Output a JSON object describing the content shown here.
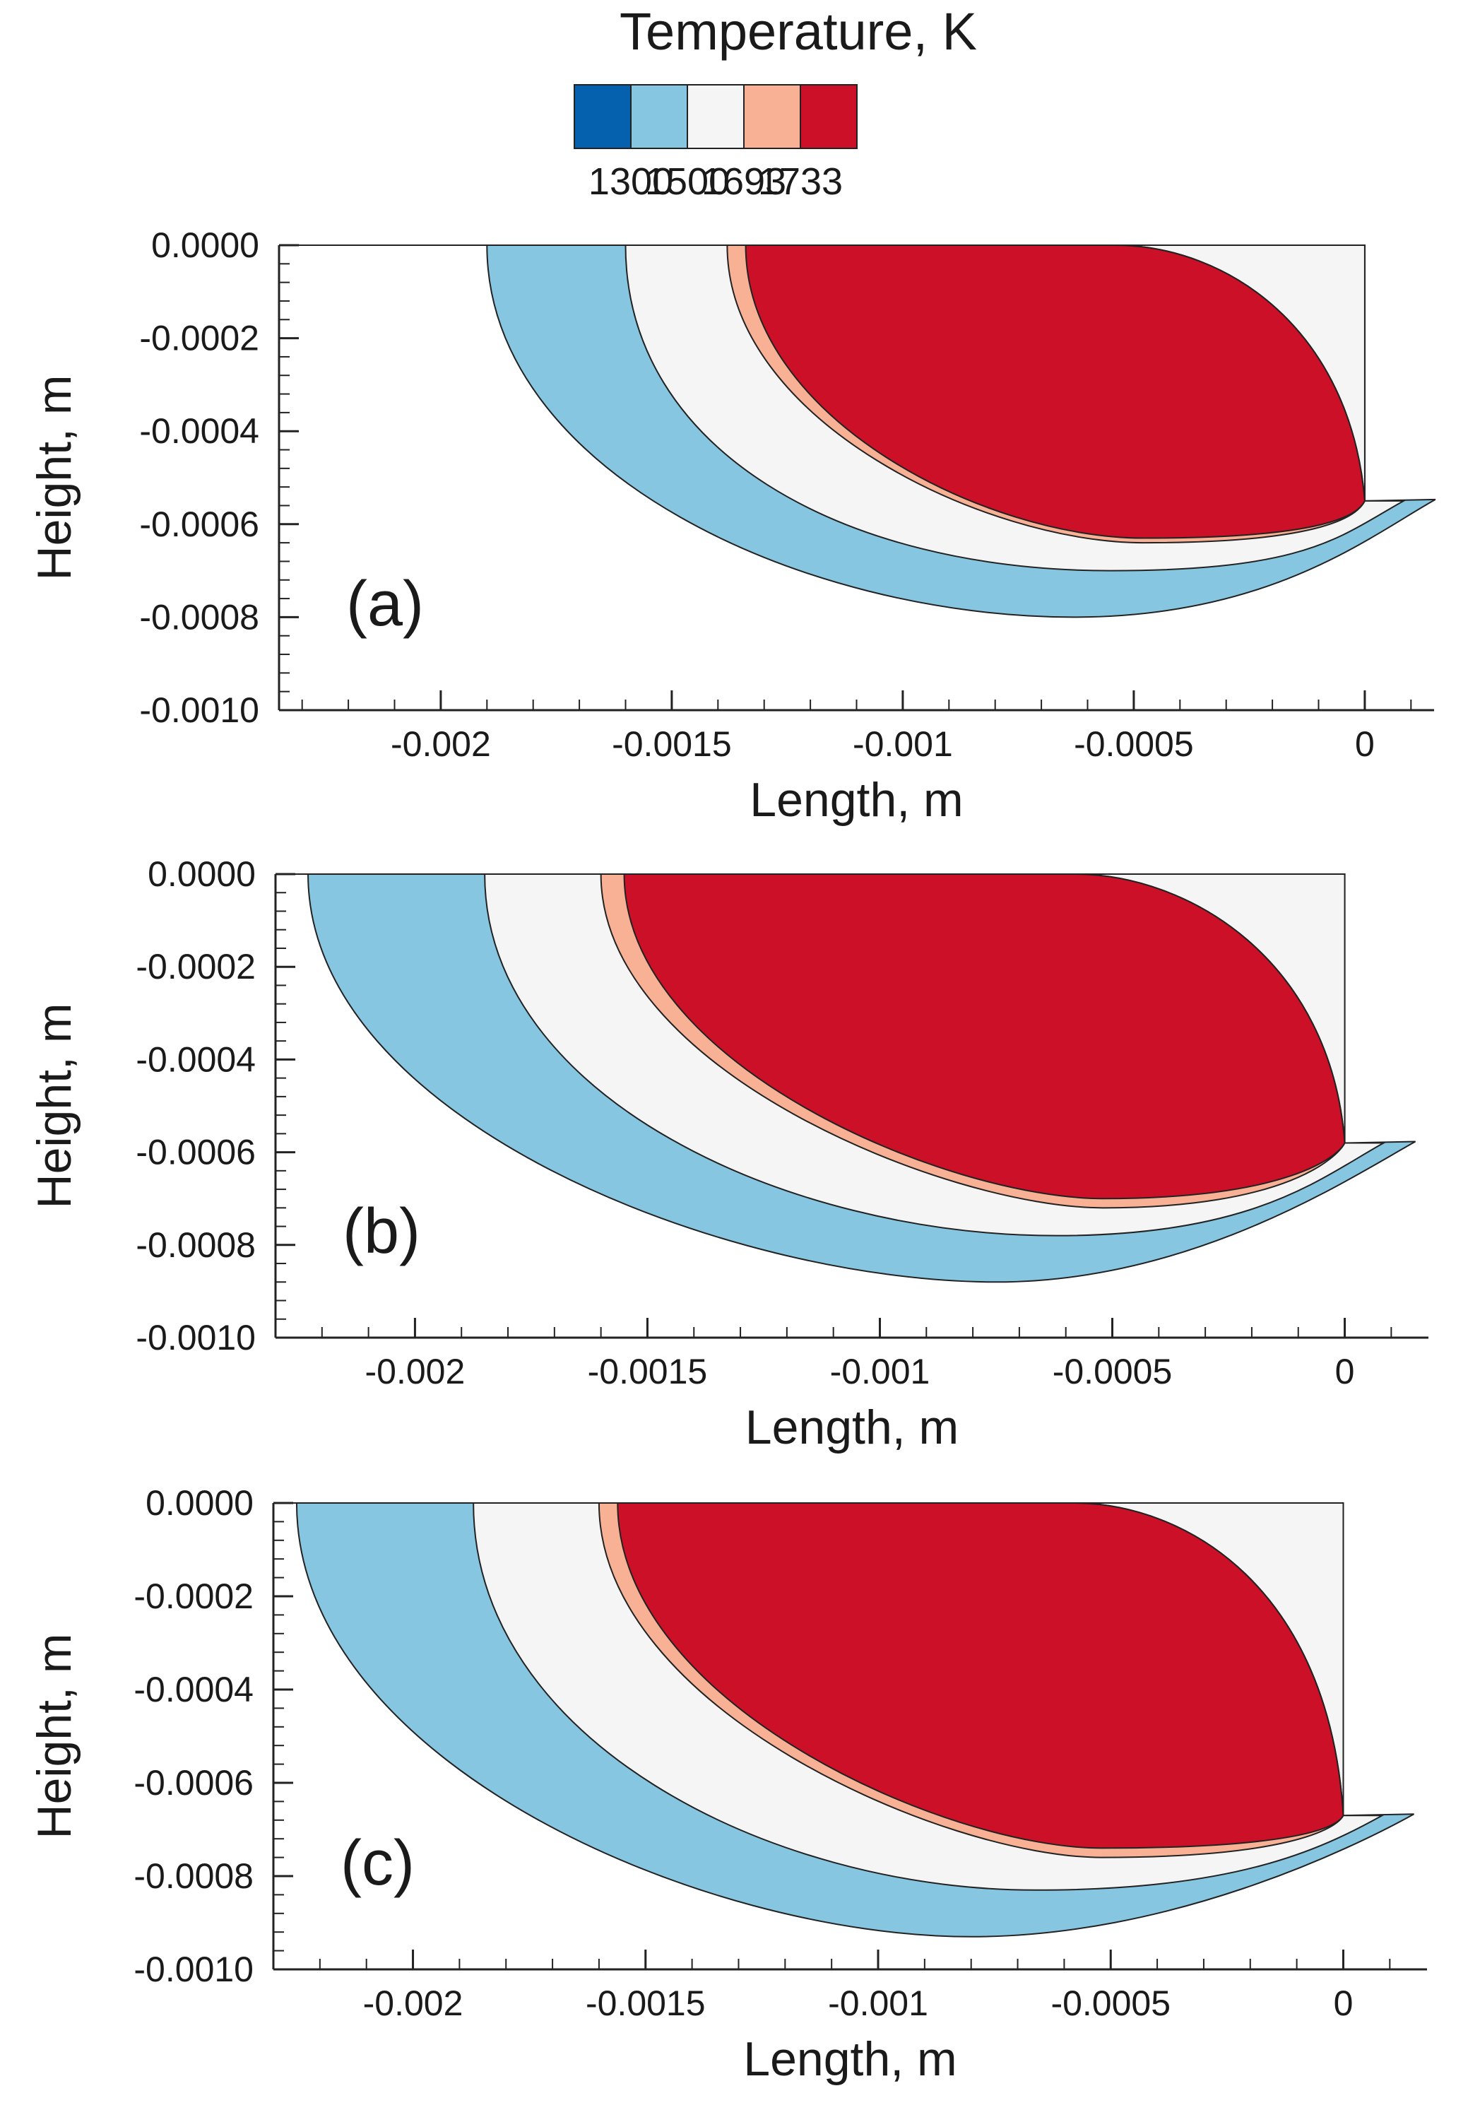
{
  "colorbar": {
    "title": "Temperature, K",
    "levels": [
      {
        "name": "below-1300",
        "color": "#0561ad"
      },
      {
        "name": "1300-1500",
        "color": "#87c6e0"
      },
      {
        "name": "1500-1693",
        "color": "#f5f5f5"
      },
      {
        "name": "1693-1733",
        "color": "#f8b195"
      },
      {
        "name": "above-1733",
        "color": "#cc1027"
      }
    ],
    "tick_labels": [
      "1300",
      "1500",
      "1693",
      "1733"
    ]
  },
  "chart_data": [
    {
      "type": "contour",
      "panel_label": "(a)",
      "title": "",
      "xlabel": "Length, m",
      "ylabel": "Height, m",
      "xlim": [
        -0.00235,
        0.00015
      ],
      "ylim": [
        -0.001,
        0.0
      ],
      "xticks": [
        -0.002,
        -0.0015,
        -0.001,
        -0.0005,
        0
      ],
      "xtick_labels": [
        "-0.002",
        "-0.0015",
        "-0.001",
        "-0.0005",
        "0"
      ],
      "yticks": [
        0.0,
        -0.0002,
        -0.0004,
        -0.0006,
        -0.0008,
        -0.001
      ],
      "ytick_labels": [
        "0.0000",
        "-0.0002",
        "-0.0004",
        "-0.0006",
        "-0.0008",
        "-0.0010"
      ],
      "melt_pool_depth": 0.00055,
      "top_surface_start": -0.00235,
      "contours": [
        {
          "isotherm": "1300",
          "surface_x": -0.0019,
          "max_depth": -0.0008,
          "depth_x": -0.00063
        },
        {
          "isotherm": "1500",
          "surface_x": -0.0016,
          "max_depth": -0.0007,
          "depth_x": -0.00055
        },
        {
          "isotherm": "1693",
          "surface_x": -0.00138,
          "max_depth": -0.00064,
          "depth_x": -0.00048
        },
        {
          "isotherm": "1733",
          "surface_x": -0.00134,
          "max_depth": -0.00063,
          "depth_x": -0.00048
        }
      ]
    },
    {
      "type": "contour",
      "panel_label": "(b)",
      "title": "",
      "xlabel": "Length, m",
      "ylabel": "Height, m",
      "xlim": [
        -0.0023,
        0.00018
      ],
      "ylim": [
        -0.001,
        0.0
      ],
      "xticks": [
        -0.002,
        -0.0015,
        -0.001,
        -0.0005,
        0
      ],
      "xtick_labels": [
        "-0.002",
        "-0.0015",
        "-0.001",
        "-0.0005",
        "0"
      ],
      "yticks": [
        0.0,
        -0.0002,
        -0.0004,
        -0.0006,
        -0.0008,
        -0.001
      ],
      "ytick_labels": [
        "0.0000",
        "-0.0002",
        "-0.0004",
        "-0.0006",
        "-0.0008",
        "-0.0010"
      ],
      "melt_pool_depth": 0.00058,
      "top_surface_start": -0.0023,
      "contours": [
        {
          "isotherm": "1300",
          "surface_x": -0.00223,
          "max_depth": -0.00088,
          "depth_x": -0.00075
        },
        {
          "isotherm": "1500",
          "surface_x": -0.00185,
          "max_depth": -0.00078,
          "depth_x": -0.00062
        },
        {
          "isotherm": "1693",
          "surface_x": -0.0016,
          "max_depth": -0.00072,
          "depth_x": -0.00052
        },
        {
          "isotherm": "1733",
          "surface_x": -0.00155,
          "max_depth": -0.0007,
          "depth_x": -0.00052
        }
      ]
    },
    {
      "type": "contour",
      "panel_label": "(c)",
      "title": "",
      "xlabel": "Length, m",
      "ylabel": "Height, m",
      "xlim": [
        -0.0023,
        0.00018
      ],
      "ylim": [
        -0.001,
        0.0
      ],
      "xticks": [
        -0.002,
        -0.0015,
        -0.001,
        -0.0005,
        0
      ],
      "xtick_labels": [
        "-0.002",
        "-0.0015",
        "-0.001",
        "-0.0005",
        "0"
      ],
      "yticks": [
        0.0,
        -0.0002,
        -0.0004,
        -0.0006,
        -0.0008,
        -0.001
      ],
      "ytick_labels": [
        "0.0000",
        "-0.0002",
        "-0.0004",
        "-0.0006",
        "-0.0008",
        "-0.0010"
      ],
      "melt_pool_depth": 0.00067,
      "top_surface_start": -0.0023,
      "contours": [
        {
          "isotherm": "1300",
          "surface_x": -0.00225,
          "max_depth": -0.00093,
          "depth_x": -0.0008
        },
        {
          "isotherm": "1500",
          "surface_x": -0.00187,
          "max_depth": -0.00083,
          "depth_x": -0.00066
        },
        {
          "isotherm": "1693",
          "surface_x": -0.0016,
          "max_depth": -0.00076,
          "depth_x": -0.00052
        },
        {
          "isotherm": "1733",
          "surface_x": -0.00156,
          "max_depth": -0.00074,
          "depth_x": -0.00052
        }
      ]
    }
  ]
}
